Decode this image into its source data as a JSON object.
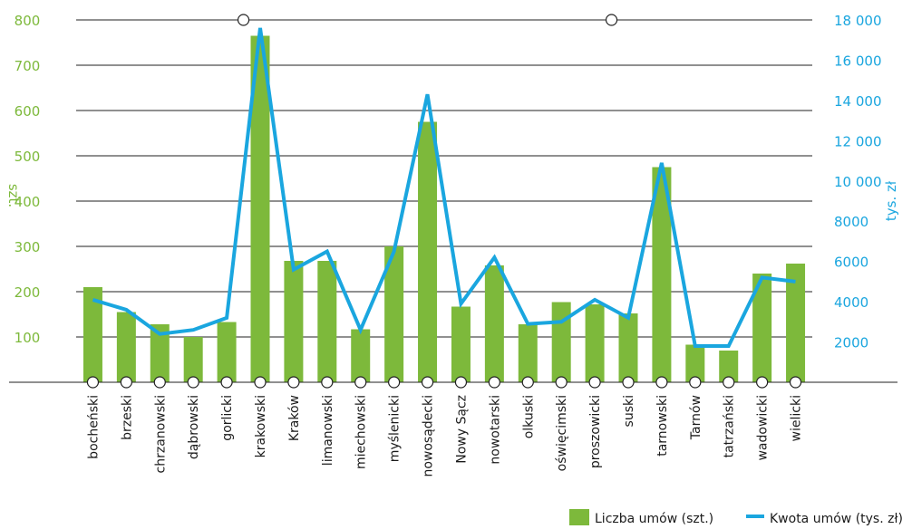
{
  "chart_data": {
    "type": "bar",
    "categories": [
      "bocheński",
      "brzeski",
      "chrzanowski",
      "dąbrowski",
      "gorlicki",
      "krakowski",
      "Kraków",
      "limanowski",
      "miechowski",
      "myślenicki",
      "nowosądecki",
      "Nowy Sącz",
      "nowotarski",
      "olkuski",
      "oświęcimski",
      "proszowicki",
      "suski",
      "tarnowski",
      "Tarnów",
      "tatrzański",
      "wadowicki",
      "wielicki"
    ],
    "series": [
      {
        "name": "Liczba umów (szt.)",
        "kind": "bar",
        "axis": "left",
        "color": "#7db93b",
        "values": [
          210,
          155,
          128,
          100,
          133,
          765,
          268,
          268,
          117,
          300,
          575,
          167,
          258,
          128,
          177,
          172,
          152,
          475,
          83,
          70,
          240,
          262
        ]
      },
      {
        "name": "Kwota umów (tys. zł)",
        "kind": "line",
        "axis": "right",
        "color": "#1aa6df",
        "values": [
          4100,
          3600,
          2400,
          2600,
          3200,
          17600,
          5600,
          6500,
          2600,
          6500,
          14300,
          3900,
          6200,
          2900,
          3000,
          4100,
          3200,
          10900,
          1800,
          1800,
          5200,
          5000
        ]
      }
    ],
    "ylabel_left": "szt.",
    "ylabel_right": "tys. zł",
    "ylim_left": [
      0,
      800
    ],
    "ylim_right": [
      0,
      18000
    ],
    "yticks_left": [
      "100",
      "200",
      "300",
      "400",
      "500",
      "600",
      "700",
      "800"
    ],
    "yticks_right": [
      "2000",
      "4000",
      "6000",
      "8000",
      "10 000",
      "12 000",
      "14 000",
      "16 000",
      "18 000"
    ],
    "grid": true,
    "legend_position": "bottom-right"
  }
}
